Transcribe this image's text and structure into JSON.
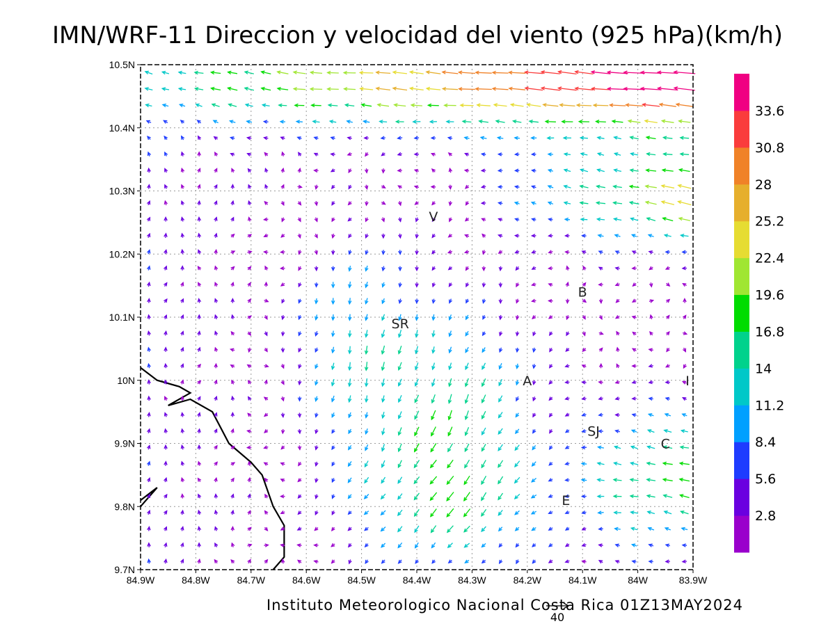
{
  "title": "IMN/WRF-11 Direccion y velocidad del viento (925 hPa)(km/h)",
  "footer": "Instituto Meteorologico Nacional Costa Rica 01Z13MAY2024",
  "reference_vector_label": "40",
  "chart_data": {
    "type": "vector-field",
    "title": "IMN/WRF-11 Direccion y velocidad del viento (925 hPa)(km/h)",
    "xlabel": "",
    "ylabel": "",
    "x_ticks": [
      "84.9W",
      "84.8W",
      "84.7W",
      "84.6W",
      "84.5W",
      "84.4W",
      "84.3W",
      "84.2W",
      "84.1W",
      "84W",
      "83.9W"
    ],
    "y_ticks": [
      "10.5N",
      "10.4N",
      "10.3N",
      "10.2N",
      "10.1N",
      "10N",
      "9.9N",
      "9.8N",
      "9.7N"
    ],
    "xlim": [
      -84.9,
      -83.9
    ],
    "ylim": [
      9.7,
      10.5
    ],
    "grid": true,
    "colorbar": {
      "labels": [
        "2.8",
        "5.6",
        "8.4",
        "11.2",
        "14",
        "16.8",
        "19.6",
        "22.4",
        "25.2",
        "28",
        "30.8",
        "33.6"
      ],
      "colors": [
        "#9a00cc",
        "#6a00e0",
        "#1e3cff",
        "#00a0ff",
        "#00c8c8",
        "#00d28c",
        "#00dc00",
        "#a0e632",
        "#e6dc32",
        "#e6af2d",
        "#f08228",
        "#fa3c3c",
        "#f00082"
      ]
    },
    "stations": [
      {
        "label": "V",
        "lon": -84.37,
        "lat": 10.26
      },
      {
        "label": "B",
        "lon": -84.1,
        "lat": 10.14
      },
      {
        "label": "SR",
        "lon": -84.43,
        "lat": 10.09
      },
      {
        "label": "A",
        "lon": -84.2,
        "lat": 10.0
      },
      {
        "label": "I",
        "lon": -83.91,
        "lat": 10.0
      },
      {
        "label": "SJ",
        "lon": -84.08,
        "lat": 9.92
      },
      {
        "label": "C",
        "lon": -83.95,
        "lat": 9.9
      },
      {
        "label": "E",
        "lon": -84.13,
        "lat": 9.81
      }
    ],
    "coastline": [
      [
        [
          -84.9,
          10.02
        ],
        [
          -84.87,
          10.0
        ],
        [
          -84.83,
          9.99
        ],
        [
          -84.81,
          9.98
        ],
        [
          -84.85,
          9.96
        ],
        [
          -84.81,
          9.97
        ],
        [
          -84.77,
          9.95
        ],
        [
          -84.74,
          9.9
        ],
        [
          -84.7,
          9.87
        ],
        [
          -84.68,
          9.85
        ],
        [
          -84.66,
          9.8
        ],
        [
          -84.64,
          9.77
        ],
        [
          -84.64,
          9.72
        ],
        [
          -84.66,
          9.7
        ]
      ],
      [
        [
          -84.9,
          9.81
        ],
        [
          -84.87,
          9.83
        ],
        [
          -84.9,
          9.8
        ]
      ]
    ],
    "wind_field": {
      "units": "km/h",
      "reference_vector": 40,
      "regions": [
        {
          "area": "north strip 10.38N-10.5N",
          "direction": "easterly",
          "speed_range": [
            20,
            36
          ]
        },
        {
          "area": "northeast 10.25N-10.38N, 84.2W-83.9W",
          "direction": "easterly",
          "speed_range": [
            18,
            30
          ]
        },
        {
          "area": "western lowlands",
          "direction": "southerly",
          "speed_range": [
            2,
            6
          ]
        },
        {
          "area": "central 10.0N-10.25N",
          "direction": "northerly",
          "speed_range": [
            6,
            16
          ]
        },
        {
          "area": "south-central 9.8N-9.95N",
          "direction": "northeasterly",
          "speed_range": [
            8,
            20
          ]
        },
        {
          "area": "southeast near 84W-83.9W",
          "direction": "easterly",
          "speed_range": [
            10,
            24
          ]
        }
      ]
    }
  }
}
